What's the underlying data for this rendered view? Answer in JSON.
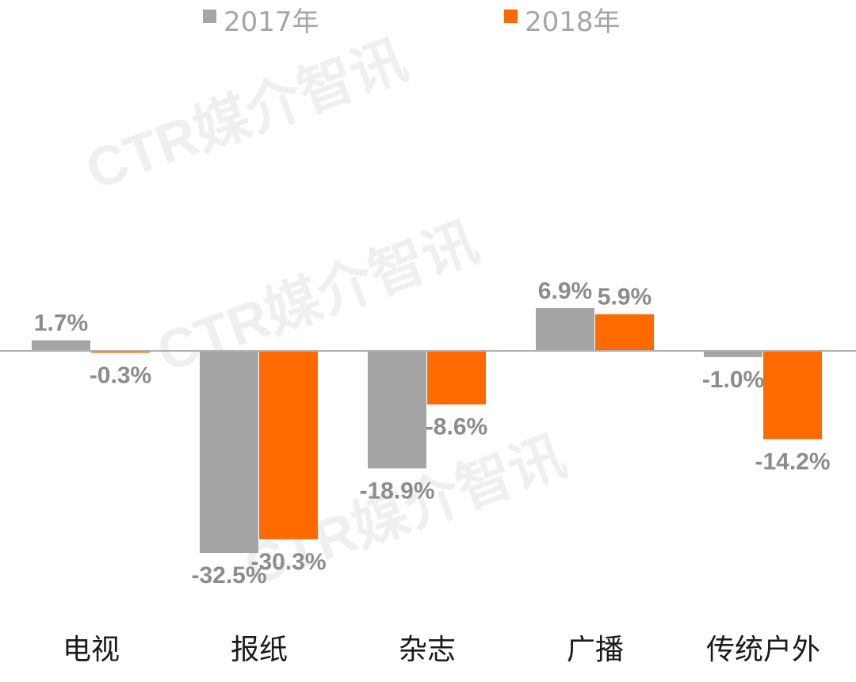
{
  "chart_data": {
    "type": "bar",
    "categories": [
      "电视",
      "报纸",
      "杂志",
      "广播",
      "传统户外"
    ],
    "series": [
      {
        "name": "2017年",
        "color": "#a5a5a5",
        "values": [
          1.7,
          -32.5,
          -18.9,
          6.9,
          -1.0
        ],
        "labels": [
          "1.7%",
          "-32.5%",
          "-18.9%",
          "6.9%",
          "-1.0%"
        ]
      },
      {
        "name": "2018年",
        "color": "#ff6a00",
        "values": [
          -0.3,
          -30.3,
          -8.6,
          5.9,
          -14.2
        ],
        "labels": [
          "-0.3%",
          "-30.3%",
          "-8.6%",
          "5.9%",
          "-14.2%"
        ]
      }
    ],
    "title": "",
    "xlabel": "",
    "ylabel": "",
    "ylim": [
      -35,
      10
    ],
    "grid": false,
    "legend": "top-center",
    "watermark": "CTR媒介智讯",
    "axis_color": "#b0b0b0",
    "label_color": "#8c8c8c"
  }
}
